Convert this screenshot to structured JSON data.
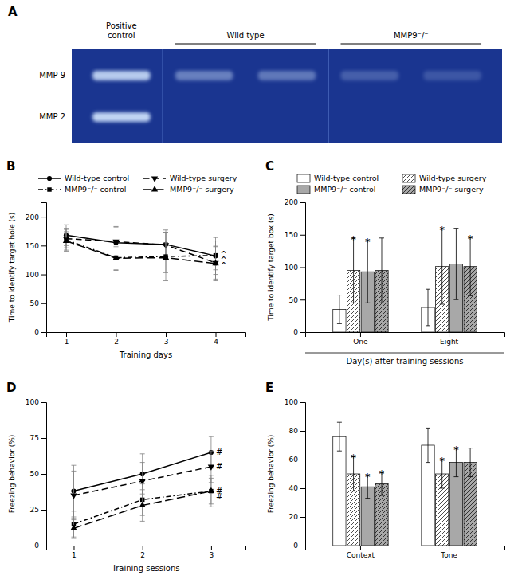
{
  "chart_data": [
    {
      "type": "gel",
      "title": "A",
      "categories": [
        "Positive\ncontrol",
        "Wild type",
        "MMP9⁻/⁻"
      ],
      "annotations": [
        "MMP 9",
        "MMP 2"
      ],
      "color": "#1a3590"
    },
    {
      "type": "line",
      "title": "B",
      "xlabel": "Training days",
      "ylabel": "Time to identify target hole (s)",
      "xlim": [
        0.6,
        4.6
      ],
      "ylim": [
        0,
        225
      ],
      "xticks": [
        1,
        2,
        3,
        4
      ],
      "yticks": [
        0,
        50,
        100,
        150,
        200
      ],
      "x": [
        1,
        2,
        3,
        4
      ],
      "series": [
        {
          "name": "Wild-type control",
          "color": "black",
          "marker": "circle",
          "line_style": "solid",
          "values": [
            168,
            155,
            152,
            132
          ],
          "errors": [
            18,
            28,
            25,
            32
          ]
        },
        {
          "name": "Wild-type surgery",
          "color": "black",
          "marker": "triangle-down",
          "line_style": "dashed",
          "values": [
            162,
            157,
            151,
            120
          ],
          "errors": [
            16,
            25,
            22,
            28
          ]
        },
        {
          "name": "MMP9⁻/⁻ control",
          "color": "black",
          "marker": "square",
          "line_style": "dashdot",
          "values": [
            160,
            129,
            131,
            133
          ],
          "errors": [
            20,
            22,
            42,
            25
          ]
        },
        {
          "name": "MMP9⁻/⁻ surgery",
          "color": "black",
          "marker": "triangle-up",
          "line_style": "longdash",
          "values": [
            158,
            128,
            129,
            119
          ],
          "errors": [
            16,
            20,
            26,
            30
          ]
        }
      ],
      "annotations": [
        {
          "text": "^",
          "x": 4,
          "y": 134
        },
        {
          "text": "^",
          "x": 4,
          "y": 124
        },
        {
          "text": "^",
          "x": 4,
          "y": 114
        }
      ],
      "legend": "top",
      "grid": false
    },
    {
      "type": "bar",
      "title": "C",
      "xlabel": "Day(s) after training sessions",
      "ylabel": "Time to identify target box (s)",
      "ylim": [
        0,
        200
      ],
      "yticks": [
        0,
        50,
        100,
        150,
        200
      ],
      "categories": [
        "One",
        "Eight"
      ],
      "series": [
        {
          "name": "Wild-type control",
          "color": "white",
          "values": [
            35,
            38
          ],
          "errors": [
            22,
            28
          ],
          "annotations": [
            null,
            null
          ]
        },
        {
          "name": "Wild-type surgery",
          "color": "white",
          "values": [
            95,
            101
          ],
          "errors": [
            50,
            58
          ],
          "annotations": [
            "*",
            "*"
          ]
        },
        {
          "name": "MMP9⁻/⁻ control",
          "color": "#a8a8a8",
          "values": [
            93,
            105
          ],
          "errors": [
            48,
            55
          ],
          "annotations": [
            "*",
            null
          ]
        },
        {
          "name": "MMP9⁻/⁻ surgery",
          "color": "#a8a8a8",
          "values": [
            95,
            101
          ],
          "errors": [
            50,
            45
          ],
          "annotations": [
            null,
            "*"
          ]
        }
      ],
      "legend": "top",
      "grid": false
    },
    {
      "type": "line",
      "title": "D",
      "xlabel": "Training sessions",
      "ylabel": "Freezing behavior (%)",
      "xlim": [
        0.6,
        3.5
      ],
      "ylim": [
        0,
        100
      ],
      "xticks": [
        1,
        2,
        3
      ],
      "yticks": [
        0,
        25,
        50,
        75,
        100
      ],
      "x": [
        1,
        2,
        3
      ],
      "series": [
        {
          "color": "black",
          "marker": "circle",
          "line_style": "solid",
          "values": [
            38,
            50,
            65
          ],
          "errors": [
            18,
            14,
            11
          ]
        },
        {
          "color": "black",
          "marker": "triangle-down",
          "line_style": "dashed",
          "values": [
            35,
            45,
            55
          ],
          "errors": [
            17,
            13,
            11
          ]
        },
        {
          "color": "black",
          "marker": "square",
          "line_style": "dashdot",
          "values": [
            15,
            32,
            38
          ],
          "errors": [
            9,
            11,
            11
          ]
        },
        {
          "color": "black",
          "marker": "triangle-up",
          "line_style": "longdash",
          "values": [
            12,
            28,
            38
          ],
          "errors": [
            7,
            11,
            9
          ]
        }
      ],
      "annotations": [
        {
          "text": "#",
          "x": 3,
          "y": 65
        },
        {
          "text": "#",
          "x": 3,
          "y": 55
        },
        {
          "text": "#",
          "x": 3,
          "y": 38
        },
        {
          "text": "#",
          "x": 3,
          "y": 34
        }
      ],
      "grid": false
    },
    {
      "type": "bar",
      "title": "E",
      "ylabel": "Freezing behavior (%)",
      "ylim": [
        0,
        100
      ],
      "yticks": [
        0,
        20,
        40,
        60,
        80,
        100
      ],
      "categories": [
        "Context",
        "Tone"
      ],
      "series": [
        {
          "color": "white",
          "values": [
            76,
            70
          ],
          "errors": [
            10,
            12
          ],
          "annotations": [
            null,
            null
          ]
        },
        {
          "color": "white",
          "values": [
            50,
            50
          ],
          "errors": [
            12,
            10
          ],
          "annotations": [
            "*",
            "*"
          ]
        },
        {
          "color": "#a8a8a8",
          "values": [
            41,
            58
          ],
          "errors": [
            8,
            10
          ],
          "annotations": [
            "*",
            "*"
          ]
        },
        {
          "color": "#a8a8a8",
          "values": [
            43,
            58
          ],
          "errors": [
            8,
            10
          ],
          "annotations": [
            "*",
            null
          ]
        }
      ],
      "grid": false
    }
  ]
}
